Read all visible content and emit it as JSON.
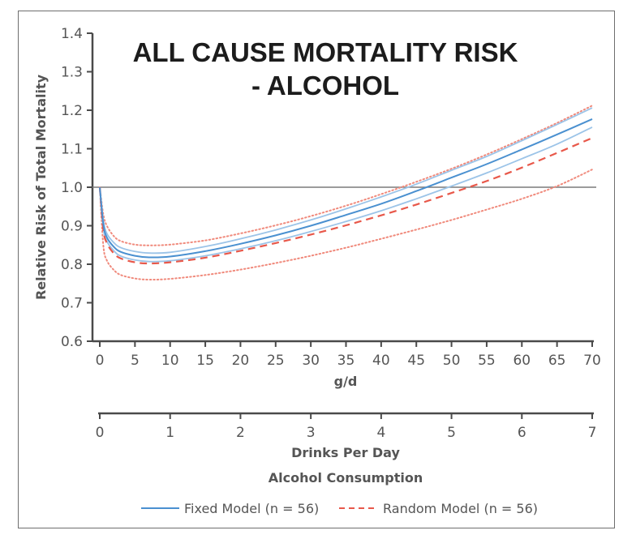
{
  "chart_data": {
    "type": "line",
    "title": [
      "ALL CAUSE MORTALITY RISK",
      "- ALCOHOL"
    ],
    "ylabel": "Relative Risk of Total Mortality",
    "xlabel": "g/d",
    "x2label": "Drinks Per Day",
    "x_group_label": "Alcohol Consumption",
    "ylim": [
      0.6,
      1.4
    ],
    "xlim": [
      0,
      70
    ],
    "x2lim": [
      0,
      7
    ],
    "yticks": [
      "0.6",
      "0.7",
      "0.8",
      "0.9",
      "1.0",
      "1.1",
      "1.2",
      "1.3",
      "1.4"
    ],
    "ytick_values": [
      0.6,
      0.7,
      0.8,
      0.9,
      1.0,
      1.1,
      1.2,
      1.3,
      1.4
    ],
    "xticks": [
      "0",
      "5",
      "10",
      "15",
      "20",
      "25",
      "30",
      "35",
      "40",
      "45",
      "50",
      "55",
      "60",
      "65",
      "70"
    ],
    "xtick_values": [
      0,
      5,
      10,
      15,
      20,
      25,
      30,
      35,
      40,
      45,
      50,
      55,
      60,
      65,
      70
    ],
    "x2ticks": [
      "0",
      "1",
      "2",
      "3",
      "4",
      "5",
      "6",
      "7"
    ],
    "x2tick_values": [
      0,
      1,
      2,
      3,
      4,
      5,
      6,
      7
    ],
    "reference_line": 1.0,
    "grid": false,
    "legend_position": "bottom-center",
    "x": [
      0,
      0.5,
      1,
      2,
      3,
      5,
      7,
      10,
      15,
      20,
      25,
      30,
      35,
      40,
      45,
      50,
      55,
      60,
      65,
      70
    ],
    "series": [
      {
        "name": "Fixed Model (n = 56)",
        "role": "estimate",
        "style": "solid",
        "color": "#4a90d0",
        "values": [
          1.0,
          0.905,
          0.87,
          0.845,
          0.832,
          0.822,
          0.818,
          0.82,
          0.834,
          0.853,
          0.875,
          0.9,
          0.928,
          0.957,
          0.99,
          1.025,
          1.06,
          1.098,
          1.137,
          1.177
        ]
      },
      {
        "name": "Fixed Model upper CI",
        "role": "ci-upper",
        "style": "solid",
        "color": "#9cc4e8",
        "values": [
          1.0,
          0.915,
          0.88,
          0.856,
          0.843,
          0.833,
          0.829,
          0.831,
          0.846,
          0.866,
          0.889,
          0.915,
          0.944,
          0.975,
          1.008,
          1.044,
          1.08,
          1.121,
          1.163,
          1.206
        ]
      },
      {
        "name": "Fixed Model lower CI",
        "role": "ci-lower",
        "style": "solid",
        "color": "#9cc4e8",
        "values": [
          1.0,
          0.895,
          0.86,
          0.835,
          0.821,
          0.811,
          0.807,
          0.809,
          0.822,
          0.84,
          0.861,
          0.885,
          0.911,
          0.939,
          0.97,
          1.003,
          1.037,
          1.074,
          1.112,
          1.156
        ]
      },
      {
        "name": "Random Model (n = 56)",
        "role": "estimate",
        "style": "dashed",
        "color": "#e8584a",
        "values": [
          1.0,
          0.89,
          0.855,
          0.828,
          0.815,
          0.805,
          0.802,
          0.805,
          0.817,
          0.835,
          0.855,
          0.877,
          0.901,
          0.927,
          0.955,
          0.985,
          1.016,
          1.051,
          1.089,
          1.128
        ]
      },
      {
        "name": "Random Model upper CI",
        "role": "ci-upper",
        "style": "dotted",
        "color": "#f08a7c",
        "values": [
          1.0,
          0.93,
          0.9,
          0.873,
          0.86,
          0.851,
          0.849,
          0.851,
          0.862,
          0.88,
          0.901,
          0.925,
          0.952,
          0.982,
          1.014,
          1.048,
          1.085,
          1.125,
          1.167,
          1.212
        ]
      },
      {
        "name": "Random Model lower CI",
        "role": "ci-lower",
        "style": "dotted",
        "color": "#f08a7c",
        "values": [
          1.0,
          0.85,
          0.81,
          0.785,
          0.772,
          0.763,
          0.76,
          0.762,
          0.772,
          0.786,
          0.803,
          0.822,
          0.843,
          0.866,
          0.89,
          0.915,
          0.942,
          0.97,
          1.003,
          1.046
        ]
      }
    ],
    "legend": [
      {
        "label": "Fixed Model (n = 56)",
        "style": "solid",
        "color": "#4a90d0"
      },
      {
        "label": "Random Model (n = 56)",
        "style": "dashed",
        "color": "#e8584a"
      }
    ]
  }
}
